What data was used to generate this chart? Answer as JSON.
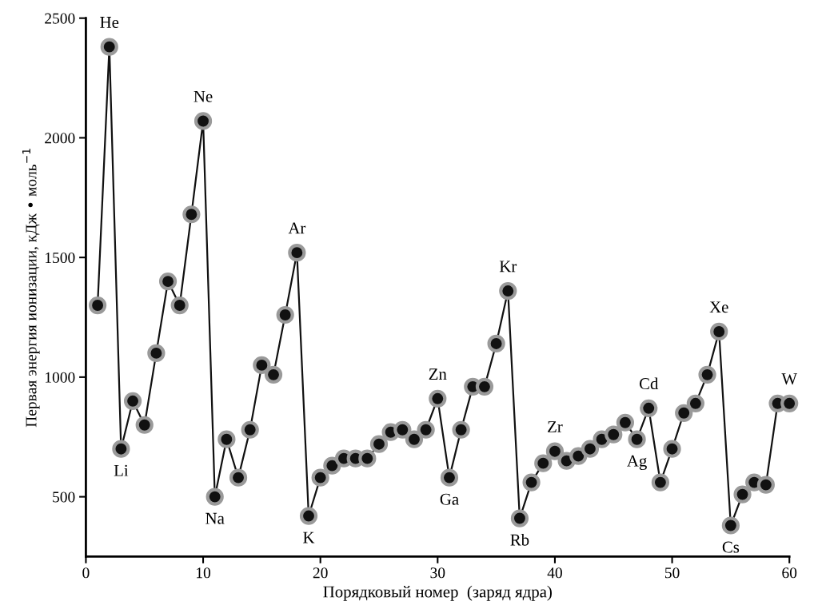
{
  "chart_data": {
    "type": "line",
    "xlabel": "Порядковый номер  (заряд ядра)",
    "ylabel": "Первая энергия ионизации, кДж • моль$^{−1}$",
    "x": [
      1,
      2,
      3,
      4,
      5,
      6,
      7,
      8,
      9,
      10,
      11,
      12,
      13,
      14,
      15,
      16,
      17,
      18,
      19,
      20,
      21,
      22,
      23,
      24,
      25,
      26,
      27,
      28,
      29,
      30,
      31,
      32,
      33,
      34,
      35,
      36,
      37,
      38,
      39,
      40,
      41,
      42,
      43,
      44,
      45,
      46,
      47,
      48,
      49,
      50,
      51,
      52,
      53,
      54,
      55,
      56,
      57,
      58,
      59,
      60
    ],
    "series": [
      {
        "color": "#111111",
        "values": [
          1300,
          2380,
          700,
          900,
          800,
          1100,
          1400,
          1300,
          1680,
          2070,
          500,
          740,
          580,
          780,
          1050,
          1010,
          1260,
          1520,
          420,
          580,
          630,
          660,
          660,
          660,
          720,
          770,
          780,
          740,
          780,
          910,
          580,
          780,
          960,
          960,
          1140,
          1360,
          410,
          560,
          640,
          690,
          650,
          670,
          700,
          740,
          760,
          810,
          740,
          870,
          560,
          700,
          850,
          890,
          1010,
          1190,
          380,
          510,
          560,
          550,
          890,
          890
        ]
      }
    ],
    "marker": "circle",
    "line_style": "solid",
    "grid": false,
    "legend": false,
    "xlim": [
      0,
      60
    ],
    "xticks": [
      0,
      10,
      20,
      30,
      40,
      50,
      60
    ],
    "ylim": [
      250,
      2500
    ],
    "yticks": [
      500,
      1000,
      1500,
      2000,
      2500
    ],
    "annotations": [
      {
        "text": "He",
        "x": 2,
        "y": 2380
      },
      {
        "text": "Li",
        "x": 3,
        "y": 700
      },
      {
        "text": "Ne",
        "x": 10,
        "y": 2070
      },
      {
        "text": "Na",
        "x": 11,
        "y": 500
      },
      {
        "text": "Ar",
        "x": 18,
        "y": 1520
      },
      {
        "text": "K",
        "x": 19,
        "y": 420
      },
      {
        "text": "Zn",
        "x": 30,
        "y": 910
      },
      {
        "text": "Ga",
        "x": 31,
        "y": 580
      },
      {
        "text": "Kr",
        "x": 36,
        "y": 1360
      },
      {
        "text": "Rb",
        "x": 37,
        "y": 410
      },
      {
        "text": "Zr",
        "x": 40,
        "y": 690
      },
      {
        "text": "Ag",
        "x": 47,
        "y": 740
      },
      {
        "text": "Cd",
        "x": 48,
        "y": 870
      },
      {
        "text": "Xe",
        "x": 54,
        "y": 1190
      },
      {
        "text": "Cs",
        "x": 55,
        "y": 380
      },
      {
        "text": "W",
        "x": 60,
        "y": 890
      }
    ]
  }
}
